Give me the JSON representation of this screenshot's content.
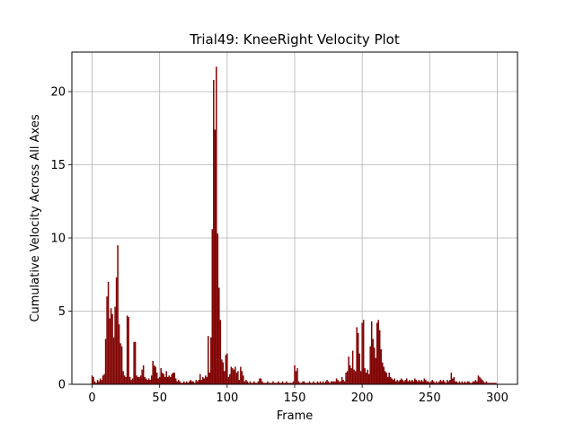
{
  "chart_data": {
    "type": "bar",
    "title": "Trial49: KneeRight Velocity Plot",
    "xlabel": "Frame",
    "ylabel": "Cumulative Velocity Across All Axes",
    "xlim": [
      -15,
      315
    ],
    "ylim": [
      0,
      22.7
    ],
    "xticks": [
      0,
      50,
      100,
      150,
      200,
      250,
      300
    ],
    "yticks": [
      0,
      5,
      10,
      15,
      20
    ],
    "grid": true,
    "bar_color": "#800000",
    "x_start": 0,
    "values": [
      0.6,
      0.5,
      0.2,
      0.1,
      0.3,
      0.2,
      0.4,
      0.3,
      0.6,
      0.7,
      3.1,
      6.0,
      7.0,
      4.5,
      5.2,
      4.8,
      3.2,
      5.3,
      7.3,
      9.5,
      4.1,
      2.8,
      2.6,
      0.9,
      0.6,
      0.5,
      4.7,
      4.6,
      0.5,
      0.3,
      0.4,
      2.9,
      2.9,
      0.6,
      0.5,
      0.5,
      0.6,
      1.0,
      1.3,
      0.5,
      0.4,
      0.3,
      0.4,
      0.3,
      0.6,
      1.6,
      1.3,
      1.2,
      0.8,
      0.4,
      0.5,
      1.1,
      0.8,
      0.7,
      0.5,
      0.9,
      0.5,
      0.6,
      0.5,
      0.7,
      0.8,
      0.8,
      0.4,
      0.2,
      0.3,
      0.2,
      0.1,
      0.1,
      0.2,
      0.1,
      0.2,
      0.1,
      0.2,
      0.3,
      0.2,
      0.2,
      0.1,
      0.3,
      0.2,
      0.3,
      0.7,
      0.3,
      0.5,
      0.4,
      0.6,
      0.5,
      3.3,
      0.8,
      3.2,
      10.6,
      20.8,
      17.4,
      21.7,
      10.3,
      6.6,
      4.4,
      1.7,
      1.5,
      0.9,
      2.0,
      2.1,
      0.5,
      0.7,
      1.2,
      1.1,
      1.0,
      1.2,
      0.8,
      0.9,
      0.3,
      1.2,
      0.9,
      0.6,
      0.2,
      0.3,
      0.2,
      0.1,
      0.2,
      0.1,
      0.1,
      0.2,
      0.1,
      0.1,
      0.2,
      0.4,
      0.4,
      0.2,
      0.1,
      0.1,
      0.1,
      0.2,
      0.1,
      0.1,
      0.1,
      0.2,
      0.1,
      0.1,
      0.1,
      0.2,
      0.1,
      0.1,
      0.2,
      0.1,
      0.1,
      0.2,
      0.1,
      0.1,
      0.1,
      0.1,
      0.2,
      1.3,
      0.9,
      1.1,
      0.2,
      0.1,
      0.1,
      0.2,
      0.2,
      0.1,
      0.1,
      0.1,
      0.2,
      0.1,
      0.1,
      0.2,
      0.1,
      0.1,
      0.2,
      0.1,
      0.2,
      0.1,
      0.2,
      0.1,
      0.2,
      0.3,
      0.2,
      0.1,
      0.2,
      0.2,
      0.2,
      0.2,
      0.4,
      0.3,
      0.2,
      0.2,
      0.5,
      0.3,
      0.2,
      0.8,
      0.9,
      1.9,
      1.3,
      1.1,
      2.3,
      1.0,
      0.9,
      3.9,
      3.5,
      2.1,
      0.9,
      4.2,
      4.4,
      1.1,
      0.8,
      1.0,
      0.7,
      2.6,
      4.3,
      3.1,
      2.5,
      1.8,
      4.2,
      4.4,
      3.7,
      2.4,
      1.5,
      1.2,
      0.9,
      0.8,
      0.5,
      0.8,
      0.5,
      0.4,
      0.3,
      0.4,
      0.2,
      0.3,
      0.2,
      0.3,
      0.4,
      0.3,
      0.2,
      0.3,
      0.4,
      0.2,
      0.3,
      0.2,
      0.3,
      0.2,
      0.4,
      0.3,
      0.2,
      0.3,
      0.2,
      0.3,
      0.2,
      0.4,
      0.3,
      0.2,
      0.2,
      0.1,
      0.2,
      0.3,
      0.2,
      0.1,
      0.2,
      0.1,
      0.2,
      0.3,
      0.2,
      0.3,
      0.2,
      0.1,
      0.3,
      0.2,
      0.3,
      0.8,
      0.4,
      0.5,
      0.2,
      0.2,
      0.1,
      0.2,
      0.1,
      0.2,
      0.1,
      0.2,
      0.1,
      0.2,
      0.2,
      0.1,
      0.1,
      0.2,
      0.2,
      0.3,
      0.2,
      0.6,
      0.5,
      0.4,
      0.3,
      0.2,
      0.1,
      0.2,
      0.1,
      0.1,
      0.1,
      0.1,
      0.1,
      0.1,
      0.1
    ]
  }
}
